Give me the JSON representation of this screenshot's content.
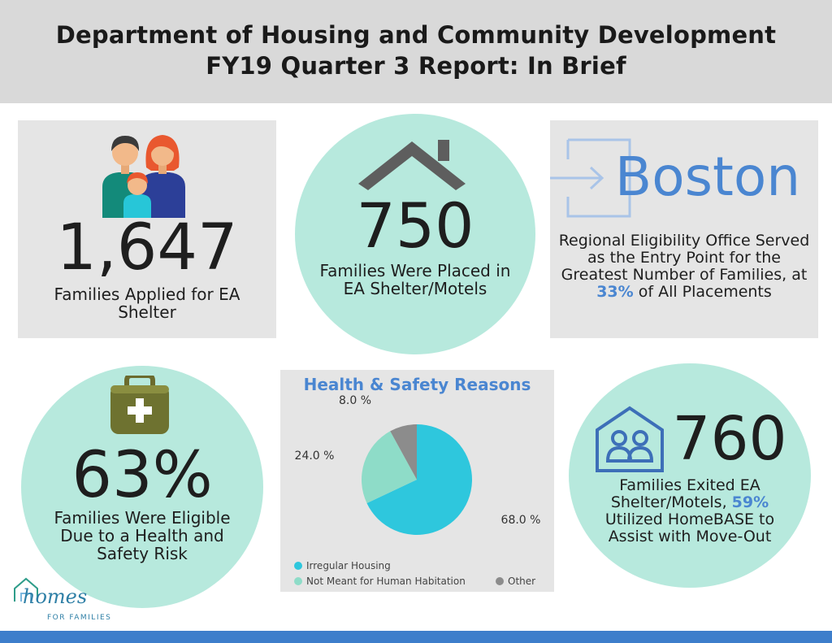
{
  "header": {
    "title_line1": "Department of Housing and Community Development",
    "title_line2": "FY19 Quarter 3 Report: In Brief"
  },
  "stats": {
    "applied": {
      "number": "1,647",
      "caption": "Families Applied for EA Shelter"
    },
    "placed": {
      "number": "750",
      "caption": "Families Were Placed in EA Shelter/Motels"
    },
    "boston": {
      "city": "Boston",
      "caption_before": "Regional Eligibility Office Served as the Entry Point for the Greatest Number of Families,",
      "caption_at": "at",
      "percent": "33%",
      "caption_after": "of All Placements"
    },
    "eligible": {
      "number": "63%",
      "caption": "Families Were Eligible Due to a Health and Safety Risk"
    },
    "exited": {
      "number": "760",
      "caption_before": "Families Exited EA Shelter/Motels,",
      "percent": "59%",
      "caption_after": "Utilized HomeBASE to Assist with Move-Out"
    }
  },
  "chart_data": {
    "type": "pie",
    "title": "Health & Safety Reasons",
    "categories": [
      "Irregular Housing",
      "Not Meant for Human Habitation",
      "Other"
    ],
    "values": [
      68.0,
      24.0,
      8.0
    ],
    "labels": [
      "68.0 %",
      "24.0 %",
      "8.0 %"
    ],
    "colors": [
      "#2ec7dd",
      "#8edcc8",
      "#8c8c8c"
    ],
    "legend_position": "bottom"
  },
  "logo": {
    "word": "homes",
    "tagline": "FOR FAMILIES"
  },
  "colors": {
    "accent": "#4a86d1",
    "circle": "#b7e9dd",
    "panel": "#e5e5e5",
    "footer": "#3d7ecb"
  }
}
